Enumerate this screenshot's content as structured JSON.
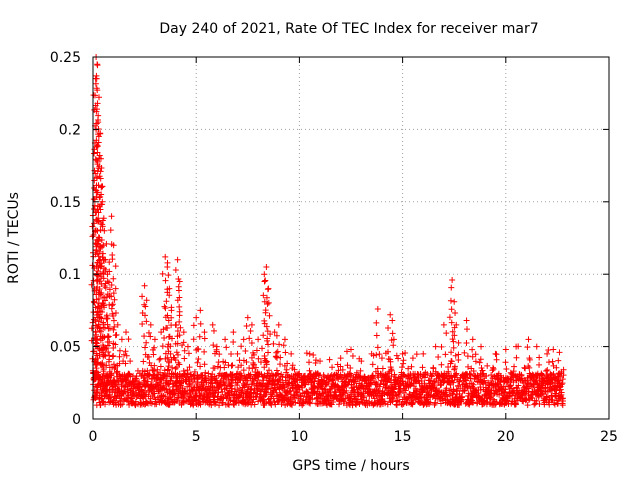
{
  "chart_data": {
    "type": "scatter",
    "title": "Day 240 of 2021, Rate Of TEC Index for receiver mar7",
    "xlabel": "GPS time / hours",
    "ylabel": "ROTI / TECUs",
    "xlim": [
      0,
      25
    ],
    "ylim": [
      0,
      0.25
    ],
    "grid": true,
    "marker": "plus",
    "color": "#ff0000",
    "x_ticks": [
      "0",
      "5",
      "10",
      "15",
      "20",
      "25"
    ],
    "y_ticks": [
      "0",
      "0.05",
      "0.1",
      "0.15",
      "0.2",
      "0.25"
    ],
    "series": [
      {
        "name": "",
        "points": [
          [
            0.05,
            0.145
          ],
          [
            0.1,
            0.13
          ],
          [
            0.12,
            0.06
          ],
          [
            0.15,
            0.25
          ],
          [
            0.18,
            0.235
          ],
          [
            0.2,
            0.245
          ],
          [
            0.22,
            0.218
          ],
          [
            0.25,
            0.205
          ],
          [
            0.3,
            0.18
          ],
          [
            0.35,
            0.197
          ],
          [
            0.4,
            0.16
          ],
          [
            0.45,
            0.15
          ],
          [
            0.5,
            0.12
          ],
          [
            0.55,
            0.13
          ],
          [
            0.6,
            0.11
          ],
          [
            0.7,
            0.1
          ],
          [
            0.8,
            0.085
          ],
          [
            0.9,
            0.14
          ],
          [
            1.0,
            0.12
          ],
          [
            1.1,
            0.09
          ],
          [
            1.2,
            0.065
          ],
          [
            1.4,
            0.055
          ],
          [
            1.6,
            0.06
          ],
          [
            1.8,
            0.04
          ],
          [
            2.5,
            0.092
          ],
          [
            2.6,
            0.082
          ],
          [
            2.8,
            0.065
          ],
          [
            3.0,
            0.055
          ],
          [
            3.3,
            0.06
          ],
          [
            3.5,
            0.112
          ],
          [
            3.6,
            0.105
          ],
          [
            3.7,
            0.09
          ],
          [
            3.8,
            0.075
          ],
          [
            4.0,
            0.065
          ],
          [
            4.1,
            0.11
          ],
          [
            4.2,
            0.095
          ],
          [
            4.4,
            0.06
          ],
          [
            4.6,
            0.05
          ],
          [
            5.0,
            0.07
          ],
          [
            5.2,
            0.075
          ],
          [
            5.4,
            0.06
          ],
          [
            5.8,
            0.065
          ],
          [
            6.0,
            0.05
          ],
          [
            6.4,
            0.055
          ],
          [
            6.8,
            0.06
          ],
          [
            7.0,
            0.045
          ],
          [
            7.3,
            0.055
          ],
          [
            7.5,
            0.07
          ],
          [
            7.7,
            0.065
          ],
          [
            8.0,
            0.055
          ],
          [
            8.3,
            0.1
          ],
          [
            8.4,
            0.105
          ],
          [
            8.5,
            0.09
          ],
          [
            8.8,
            0.06
          ],
          [
            9.0,
            0.065
          ],
          [
            9.3,
            0.055
          ],
          [
            9.6,
            0.045
          ],
          [
            10.5,
            0.045
          ],
          [
            11.0,
            0.04
          ],
          [
            12.0,
            0.042
          ],
          [
            12.5,
            0.048
          ],
          [
            13.0,
            0.04
          ],
          [
            13.5,
            0.045
          ],
          [
            13.8,
            0.076
          ],
          [
            14.0,
            0.042
          ],
          [
            14.4,
            0.072
          ],
          [
            14.5,
            0.068
          ],
          [
            15.0,
            0.045
          ],
          [
            15.5,
            0.042
          ],
          [
            16.0,
            0.045
          ],
          [
            16.6,
            0.05
          ],
          [
            17.0,
            0.065
          ],
          [
            17.4,
            0.096
          ],
          [
            17.5,
            0.081
          ],
          [
            17.6,
            0.065
          ],
          [
            18.1,
            0.068
          ],
          [
            18.4,
            0.055
          ],
          [
            18.8,
            0.05
          ],
          [
            19.5,
            0.045
          ],
          [
            20.0,
            0.048
          ],
          [
            20.5,
            0.05
          ],
          [
            21.1,
            0.055
          ],
          [
            21.5,
            0.05
          ],
          [
            22.0,
            0.045
          ],
          [
            22.3,
            0.048
          ],
          [
            22.6,
            0.046
          ]
        ]
      }
    ],
    "band": {
      "x_start": 0.0,
      "x_end": 22.8,
      "y_base": 0.015,
      "y_spread": 0.022
    }
  }
}
